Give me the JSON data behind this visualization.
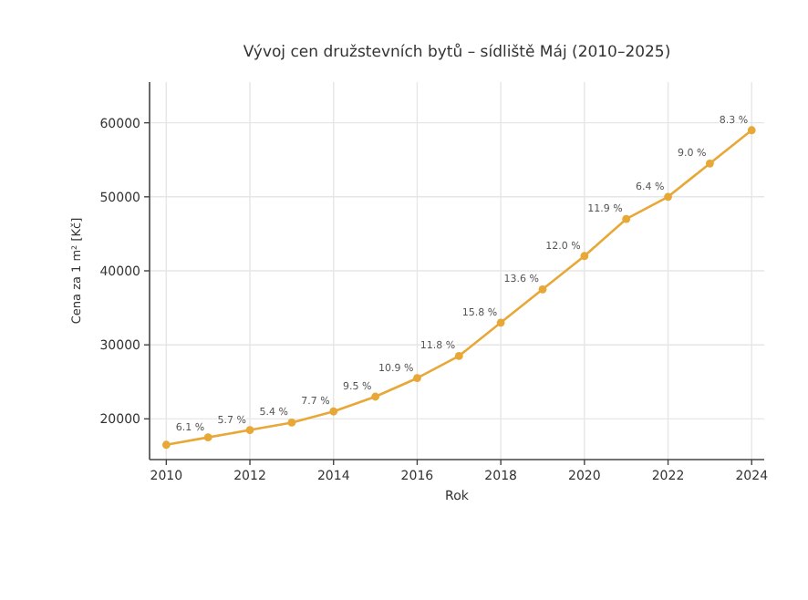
{
  "chart_data": {
    "type": "line",
    "title": "Vývoj cen družstevních bytů – sídliště Máj (2010–2025)",
    "xlabel": "Rok",
    "ylabel": "Cena za 1 m² [Kč]",
    "x": [
      2010,
      2011,
      2012,
      2013,
      2014,
      2015,
      2016,
      2017,
      2018,
      2019,
      2020,
      2021,
      2022,
      2023,
      2024
    ],
    "series": [
      {
        "color": "#e8a838",
        "values": [
          16500,
          17500,
          18500,
          19500,
          21000,
          23000,
          25500,
          28500,
          33000,
          37500,
          42000,
          47000,
          50000,
          54500,
          59000
        ]
      }
    ],
    "annotations": [
      {
        "text": "6.1 %",
        "x": 2011,
        "y": 17500
      },
      {
        "text": "5.7 %",
        "x": 2012,
        "y": 18500
      },
      {
        "text": "5.4 %",
        "x": 2013,
        "y": 19500
      },
      {
        "text": "7.7 %",
        "x": 2014,
        "y": 21000
      },
      {
        "text": "9.5 %",
        "x": 2015,
        "y": 23000
      },
      {
        "text": "10.9 %",
        "x": 2016,
        "y": 25500
      },
      {
        "text": "11.8 %",
        "x": 2017,
        "y": 28500
      },
      {
        "text": "15.8 %",
        "x": 2018,
        "y": 33000
      },
      {
        "text": "13.6 %",
        "x": 2019,
        "y": 37500
      },
      {
        "text": "12.0 %",
        "x": 2020,
        "y": 42000
      },
      {
        "text": "11.9 %",
        "x": 2021,
        "y": 47000
      },
      {
        "text": "6.4 %",
        "x": 2022,
        "y": 50000
      },
      {
        "text": "9.0 %",
        "x": 2023,
        "y": 54500
      },
      {
        "text": "8.3 %",
        "x": 2024,
        "y": 59000
      }
    ],
    "xlim": [
      2009.6,
      2024.3
    ],
    "ylim": [
      14500,
      65500
    ],
    "xticks": [
      2010,
      2012,
      2014,
      2016,
      2018,
      2020,
      2022,
      2024
    ],
    "yticks": [
      20000,
      30000,
      40000,
      50000,
      60000
    ],
    "grid": true,
    "marker": "circle",
    "line_style": "solid"
  }
}
